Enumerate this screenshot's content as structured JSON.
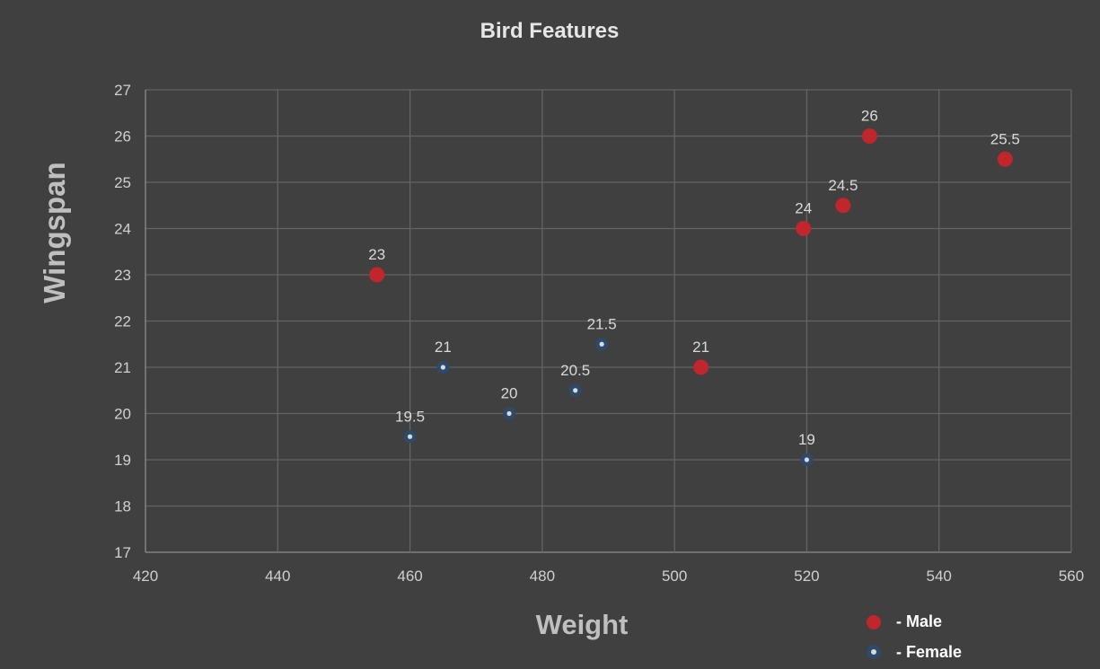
{
  "chart_data": {
    "type": "scatter",
    "title": "Bird Features",
    "xlabel": "Weight",
    "ylabel": "Wingspan",
    "xlim": [
      420,
      560
    ],
    "ylim": [
      17,
      27
    ],
    "x_ticks": [
      420,
      440,
      460,
      480,
      500,
      520,
      540,
      560
    ],
    "y_ticks": [
      17,
      18,
      19,
      20,
      21,
      22,
      23,
      24,
      25,
      26,
      27
    ],
    "grid": true,
    "legend_position": "bottom-right",
    "series": [
      {
        "name": "- Male",
        "color": "#c0262b",
        "marker": "large-dot",
        "points": [
          {
            "x": 455,
            "y": 23,
            "label": "23"
          },
          {
            "x": 504,
            "y": 21,
            "label": "21"
          },
          {
            "x": 519.5,
            "y": 24,
            "label": "24"
          },
          {
            "x": 525.5,
            "y": 24.5,
            "label": "24.5"
          },
          {
            "x": 529.5,
            "y": 26,
            "label": "26"
          },
          {
            "x": 550,
            "y": 25.5,
            "label": "25.5"
          }
        ]
      },
      {
        "name": "- Female",
        "color": "#d9d9d9",
        "halo_color": "#2e4a6b",
        "marker": "small-dot",
        "points": [
          {
            "x": 460,
            "y": 19.5,
            "label": "19.5"
          },
          {
            "x": 465,
            "y": 21,
            "label": "21"
          },
          {
            "x": 475,
            "y": 20,
            "label": "20"
          },
          {
            "x": 485,
            "y": 20.5,
            "label": "20.5"
          },
          {
            "x": 489,
            "y": 21.5,
            "label": "21.5"
          },
          {
            "x": 520,
            "y": 19,
            "label": "19"
          }
        ]
      }
    ]
  }
}
